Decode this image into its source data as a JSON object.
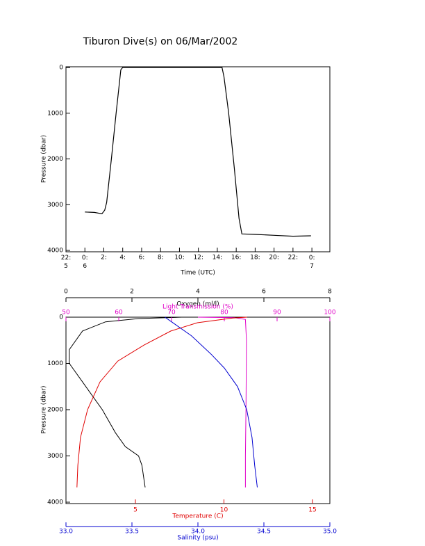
{
  "chart_data": [
    {
      "type": "line",
      "title": "Tiburon Dive(s) on 06/Mar/2002",
      "xlabel": "Time (UTC)",
      "ylabel": "Pressure (dbar)",
      "xlim": [
        -2,
        25.9
      ],
      "xticks": [
        {
          "value": -2,
          "label": "22:\n5"
        },
        {
          "value": 0,
          "label": "0:\n6"
        },
        {
          "value": 2,
          "label": "2:"
        },
        {
          "value": 4,
          "label": "4:"
        },
        {
          "value": 6,
          "label": "6:"
        },
        {
          "value": 8,
          "label": "8:"
        },
        {
          "value": 10,
          "label": "10:"
        },
        {
          "value": 12,
          "label": "12:"
        },
        {
          "value": 14,
          "label": "14:"
        },
        {
          "value": 16,
          "label": "16:"
        },
        {
          "value": 18,
          "label": "18:"
        },
        {
          "value": 20,
          "label": "20:"
        },
        {
          "value": 22,
          "label": "22:"
        },
        {
          "value": 24,
          "label": "0:\n7"
        }
      ],
      "ylim": [
        4000,
        0
      ],
      "yticks": [
        0,
        1000,
        2000,
        3000,
        4000
      ],
      "color": "#000000",
      "x": [
        0,
        1.0,
        1.8,
        2.1,
        2.3,
        2.8,
        3.3,
        3.8,
        4.0,
        14.5,
        14.7,
        15.2,
        15.8,
        16.3,
        16.6,
        18.0,
        20.0,
        22.0,
        23.9
      ],
      "values": [
        3160,
        3170,
        3200,
        3120,
        2950,
        2000,
        1000,
        50,
        0,
        0,
        200,
        1000,
        2200,
        3300,
        3640,
        3650,
        3670,
        3690,
        3680
      ]
    },
    {
      "type": "profile",
      "ylabel": "Pressure (dbar)",
      "ylim": [
        4000,
        0
      ],
      "yticks": [
        0,
        1000,
        2000,
        3000,
        4000
      ],
      "axes": [
        {
          "label": "Oxygen (ml/l)",
          "position": "top",
          "color": "#000000",
          "xlim": [
            0,
            8
          ],
          "xticks": [
            0,
            2,
            4,
            6,
            8
          ],
          "x": [
            3.5,
            2.2,
            1.2,
            0.5,
            0.1,
            0.1,
            0.5,
            1.1,
            1.5,
            1.8,
            2.2,
            2.3,
            2.4
          ],
          "y": [
            0,
            30,
            100,
            300,
            700,
            1000,
            1400,
            2000,
            2500,
            2800,
            3000,
            3200,
            3680
          ]
        },
        {
          "label": "Light Transmission (%)",
          "position": "top2",
          "color": "#e000c8",
          "xlim": [
            50,
            100
          ],
          "xticks": [
            50,
            60,
            70,
            80,
            90,
            100
          ],
          "x": [
            75,
            82,
            84,
            84.2,
            84.1,
            84.0,
            84.0
          ],
          "y": [
            0,
            10,
            50,
            500,
            2000,
            3000,
            3680
          ]
        },
        {
          "label": "Temperature (C)",
          "position": "bottom",
          "color": "#e00000",
          "xlim": [
            1.08,
            15.98
          ],
          "xticks": [
            5,
            10,
            15
          ],
          "x": [
            11.3,
            10.5,
            8.5,
            7,
            5.5,
            4,
            3,
            2.3,
            1.9,
            1.75,
            1.7
          ],
          "y": [
            0,
            20,
            120,
            300,
            600,
            950,
            1400,
            2000,
            2600,
            3200,
            3680
          ]
        },
        {
          "label": "Salinity (psu)",
          "position": "bottom2",
          "color": "#0000d0",
          "xlim": [
            33.0,
            35.0
          ],
          "xticks": [
            {
              "value": 33,
              "label": "33.0"
            },
            33.5,
            {
              "value": 34,
              "label": "34.0"
            },
            34.5,
            {
              "value": 35,
              "label": "35.0"
            }
          ],
          "x": [
            33.75,
            33.8,
            33.95,
            34.1,
            34.2,
            34.3,
            34.37,
            34.41,
            34.43,
            34.45
          ],
          "y": [
            0,
            100,
            400,
            800,
            1100,
            1500,
            2000,
            2600,
            3200,
            3680
          ]
        }
      ]
    }
  ]
}
